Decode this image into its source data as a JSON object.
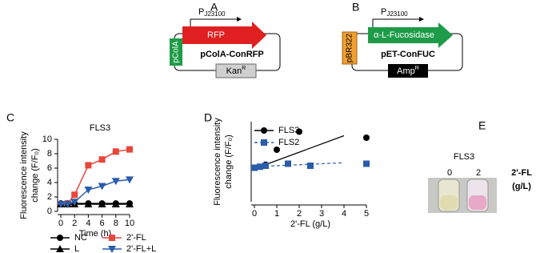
{
  "panels": {
    "A": {
      "label": "A",
      "promoter": "P",
      "promoter_sub": "J23100",
      "gene": "RFP",
      "origin": "pColA",
      "name": "pColA-ConRFP",
      "marker": "Kan",
      "marker_sup": "R"
    },
    "B": {
      "label": "B",
      "promoter": "P",
      "promoter_sub": "J23100",
      "gene": "α-L-Fucosidase",
      "origin": "pBR322",
      "name": "pET-ConFUC",
      "marker": "Amp",
      "marker_sup": "R"
    },
    "E": {
      "label": "E",
      "title": "FLS3",
      "conditions": [
        "0",
        "2"
      ],
      "condition_label": [
        "2'-FL",
        "(g/L)"
      ]
    }
  },
  "chart_data": [
    {
      "type": "line",
      "label": "C",
      "title": "FLS3",
      "xlabel": "Time (h)",
      "ylabel": [
        "Fluorescence intensity",
        "change (F/F₀)"
      ],
      "x": [
        0,
        1,
        2,
        4,
        6,
        8,
        10
      ],
      "xlim": [
        0,
        10
      ],
      "xticks": [
        0,
        2,
        4,
        6,
        8,
        10
      ],
      "ylim": [
        0,
        10
      ],
      "yticks": [
        0,
        2,
        4,
        6,
        8,
        10
      ],
      "legend": "below",
      "series": [
        {
          "name": "NC",
          "color": "#000000",
          "marker": "circle",
          "values": [
            1.1,
            1.1,
            1.1,
            1.1,
            1.1,
            1.1,
            1.1
          ]
        },
        {
          "name": "2'-FL",
          "color": "#e8453c",
          "marker": "square",
          "values": [
            1.0,
            1.1,
            2.3,
            6.4,
            7.2,
            8.3,
            8.6
          ]
        },
        {
          "name": "L",
          "color": "#000000",
          "marker": "triangle",
          "values": [
            1.0,
            1.0,
            1.0,
            1.0,
            1.0,
            1.0,
            1.0
          ]
        },
        {
          "name": "2'-FL+L",
          "color": "#2a5caa",
          "marker": "triangle-down",
          "values": [
            1.0,
            1.0,
            1.3,
            3.0,
            3.5,
            4.2,
            4.4
          ]
        }
      ]
    },
    {
      "type": "scatter",
      "label": "D",
      "xlabel": "2'-FL (g/L)",
      "ylabel": [
        "Fluorescence intensity",
        "change (F/F₀)"
      ],
      "xlim": [
        0,
        5
      ],
      "xticks": [
        0,
        1,
        2,
        3,
        4,
        5
      ],
      "ylim": [
        0,
        8
      ],
      "legend": "upper left",
      "series": [
        {
          "name": "FLS3",
          "color": "#000000",
          "marker": "circle",
          "dash": false,
          "x": [
            0,
            0.5,
            1,
            2,
            5
          ],
          "values": [
            3.4,
            3.7,
            5.2,
            7.0,
            6.4
          ],
          "fit": {
            "x": [
              0,
              4
            ],
            "values": [
              3.3,
              6.6
            ]
          }
        },
        {
          "name": "FLS2",
          "color": "#2a5caa",
          "marker": "square",
          "dash": true,
          "x": [
            0,
            0.25,
            0.5,
            1.5,
            2.5,
            5
          ],
          "values": [
            3.4,
            3.5,
            3.6,
            3.8,
            3.6,
            3.8
          ],
          "fit": {
            "x": [
              0,
              4
            ],
            "values": [
              3.5,
              3.9
            ]
          }
        }
      ]
    }
  ]
}
